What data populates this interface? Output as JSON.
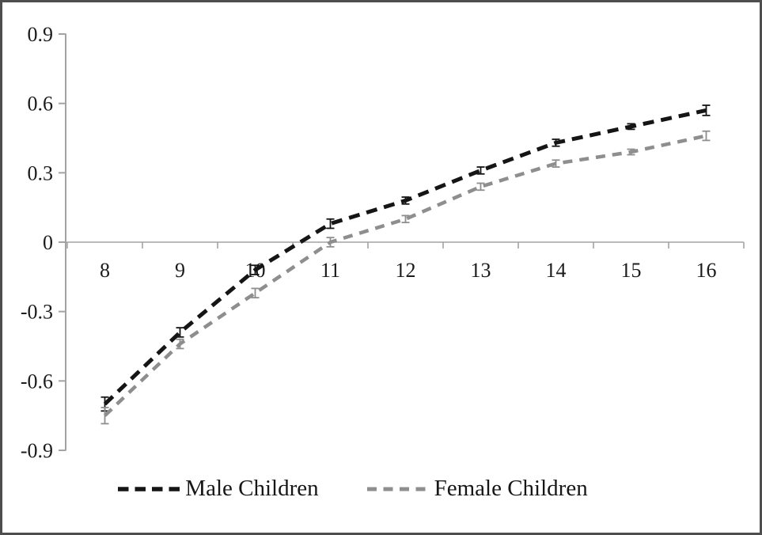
{
  "figure": {
    "background": "#ffffff",
    "border_color": "#4e4e4e"
  },
  "legend": {
    "items": [
      {
        "label": "Male Children"
      },
      {
        "label": "Female Children"
      }
    ]
  },
  "chart_data": {
    "type": "line",
    "title": "",
    "xlabel": "",
    "ylabel": "",
    "grid": false,
    "legend_position": "bottom",
    "x": [
      8,
      9,
      10,
      11,
      12,
      13,
      14,
      15,
      16
    ],
    "xtick_labels": [
      "8",
      "9",
      "10",
      "11",
      "12",
      "13",
      "14",
      "15",
      "16"
    ],
    "yticks": [
      0.9,
      0.6,
      0.3,
      0,
      -0.3,
      -0.6,
      -0.9
    ],
    "ytick_labels": [
      "0.9",
      "0.6",
      "0.3",
      "0",
      "-0.3",
      "-0.6",
      "-0.9"
    ],
    "ylim": [
      -0.9,
      0.9
    ],
    "baseline_y": 0,
    "axis_color": "#a3a3a3",
    "text_color": "#1b1b1b",
    "series": [
      {
        "name": "Male Children",
        "color": "#151515",
        "line_width": 5,
        "dash": [
          14,
          9
        ],
        "values": [
          -0.7,
          -0.39,
          -0.12,
          0.08,
          0.18,
          0.31,
          0.43,
          0.5,
          0.57
        ],
        "error_bars": [
          0.03,
          0.02,
          0.02,
          0.02,
          0.015,
          0.015,
          0.015,
          0.012,
          0.022
        ]
      },
      {
        "name": "Female Children",
        "color": "#8e8e8e",
        "line_width": 4.5,
        "dash": [
          12,
          9
        ],
        "values": [
          -0.75,
          -0.44,
          -0.22,
          0.0,
          0.1,
          0.24,
          0.34,
          0.39,
          0.46
        ],
        "error_bars": [
          0.035,
          0.02,
          0.02,
          0.02,
          0.015,
          0.015,
          0.015,
          0.012,
          0.02
        ]
      }
    ]
  }
}
